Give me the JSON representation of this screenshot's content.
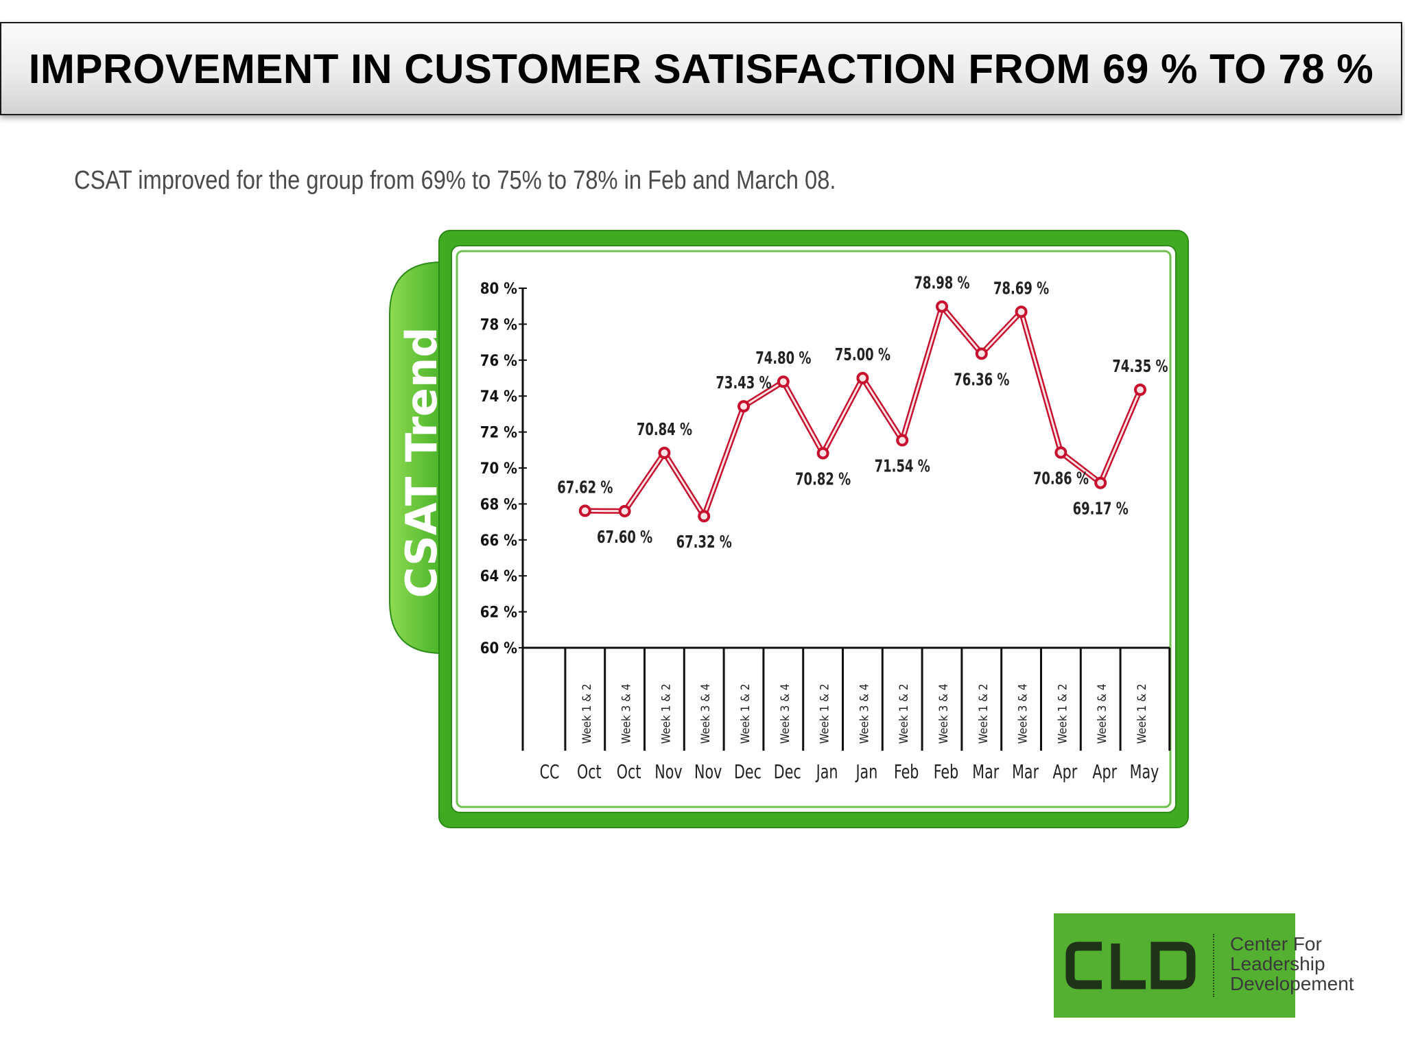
{
  "header": {
    "title": "IMPROVEMENT IN CUSTOMER SATISFACTION FROM 69 % TO 78 %",
    "subtitle": "CSAT improved for the group from 69% to 75% to 78% in Feb and March 08."
  },
  "chart_data": {
    "type": "line",
    "title": "CSAT Trend",
    "ylim": [
      60,
      80
    ],
    "y_ticks": [
      "60 %",
      "62 %",
      "64 %",
      "66 %",
      "68 %",
      "70 %",
      "72 %",
      "74 %",
      "76 %",
      "78 %",
      "80 %"
    ],
    "categories": [
      {
        "month": "CC",
        "week": ""
      },
      {
        "month": "Oct",
        "week": "Week 1 & 2"
      },
      {
        "month": "Oct",
        "week": "Week 3 & 4"
      },
      {
        "month": "Nov",
        "week": "Week 1 & 2"
      },
      {
        "month": "Nov",
        "week": "Week 3 & 4"
      },
      {
        "month": "Dec",
        "week": "Week 1 & 2"
      },
      {
        "month": "Dec",
        "week": "Week 3 & 4"
      },
      {
        "month": "Jan",
        "week": "Week 1 & 2"
      },
      {
        "month": "Jan",
        "week": "Week 3 & 4"
      },
      {
        "month": "Feb",
        "week": "Week 1 & 2"
      },
      {
        "month": "Feb",
        "week": "Week 3 & 4"
      },
      {
        "month": "Mar",
        "week": "Week 1 & 2"
      },
      {
        "month": "Mar",
        "week": "Week 3 & 4"
      },
      {
        "month": "Apr",
        "week": "Week 1 & 2"
      },
      {
        "month": "Apr",
        "week": "Week 3 & 4"
      },
      {
        "month": "May",
        "week": "Week 1 & 2"
      }
    ],
    "series": [
      {
        "values": [
          null,
          67.62,
          67.6,
          70.84,
          67.32,
          73.43,
          74.8,
          70.82,
          75.0,
          71.54,
          78.98,
          76.36,
          78.69,
          70.86,
          69.17,
          74.35
        ],
        "labels": [
          "",
          "67.62 %",
          "67.60 %",
          "70.84 %",
          "67.32 %",
          "73.43 %",
          "74.80 %",
          "70.82 %",
          "75.00 %",
          "71.54 %",
          "78.98 %",
          "76.36 %",
          "78.69 %",
          "70.86 %",
          "69.17 %",
          "74.35 %"
        ],
        "label_pos": [
          "",
          "above",
          "below",
          "above",
          "below",
          "above",
          "above",
          "below",
          "above",
          "below",
          "above",
          "below",
          "above",
          "below",
          "below",
          "above"
        ],
        "color": "#c8102e"
      }
    ],
    "grid": false,
    "legend": "none",
    "frame_color": "#4cb82a"
  },
  "logo": {
    "mark": "CLD",
    "lines": [
      "Center For",
      "Leadership",
      "Developement"
    ]
  }
}
